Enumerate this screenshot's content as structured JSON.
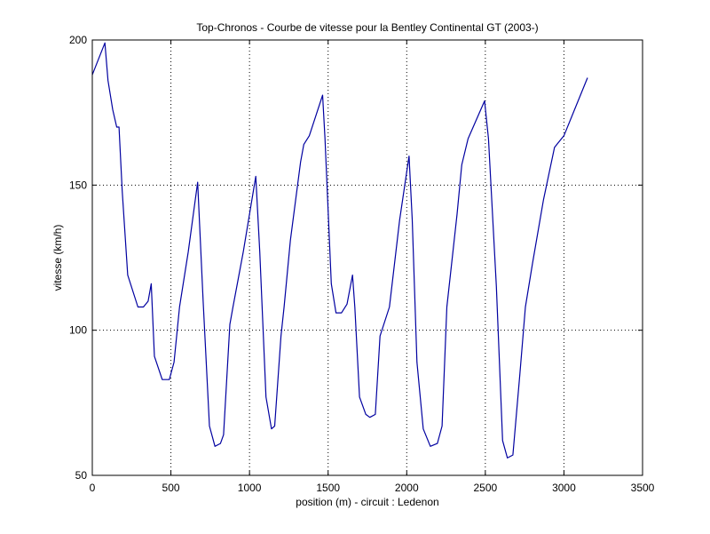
{
  "chart_data": {
    "type": "line",
    "title": "Top-Chronos - Courbe de vitesse pour la Bentley Continental GT (2003-)",
    "xlabel": "position (m) - circuit : Ledenon",
    "ylabel": "vitesse (km/h)",
    "xlim": [
      0,
      3500
    ],
    "ylim": [
      50,
      200
    ],
    "xticks": [
      0,
      500,
      1000,
      1500,
      2000,
      2500,
      3000,
      3500
    ],
    "yticks": [
      50,
      100,
      150,
      200
    ],
    "grid": true,
    "colors": {
      "line": "#0000a0",
      "axes": "#000000",
      "grid": "#000000"
    },
    "series": [
      {
        "x": [
          0,
          80,
          100,
          130,
          155,
          170,
          190,
          225,
          290,
          325,
          355,
          375,
          395,
          445,
          490,
          520,
          555,
          610,
          670,
          705,
          745,
          780,
          815,
          835,
          875,
          895,
          960,
          1040,
          1065,
          1105,
          1140,
          1160,
          1200,
          1220,
          1260,
          1325,
          1345,
          1380,
          1465,
          1480,
          1520,
          1550,
          1585,
          1620,
          1655,
          1670,
          1700,
          1740,
          1765,
          1800,
          1830,
          1890,
          1955,
          2015,
          2035,
          2065,
          2105,
          2150,
          2195,
          2225,
          2255,
          2320,
          2350,
          2390,
          2495,
          2520,
          2570,
          2610,
          2640,
          2675,
          2720,
          2755,
          2800,
          2870,
          2940,
          2970,
          3000,
          3150
        ],
        "y": [
          188,
          199,
          186,
          176,
          170,
          170,
          148,
          119,
          108,
          108,
          110,
          116,
          91,
          83,
          83,
          89,
          108,
          127,
          151,
          110,
          67,
          60,
          61,
          64,
          102,
          108,
          127,
          153,
          127,
          77,
          66,
          67,
          98,
          108,
          131,
          158,
          164,
          167,
          181,
          166,
          116,
          106,
          106,
          109,
          119,
          108,
          77,
          71,
          70,
          71,
          98,
          108,
          138,
          160,
          138,
          89,
          66,
          60,
          61,
          67,
          108,
          140,
          157,
          166,
          179,
          166,
          115,
          62,
          56,
          57,
          85,
          108,
          123,
          145,
          163,
          165,
          167,
          187
        ]
      }
    ]
  }
}
